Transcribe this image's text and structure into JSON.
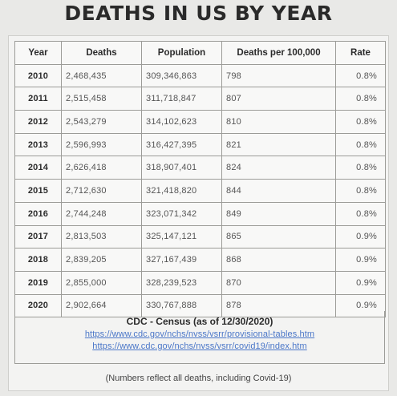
{
  "title": "DEATHS IN US BY YEAR",
  "table": {
    "headers": [
      "Year",
      "Deaths",
      "Population",
      "Deaths per 100,000",
      "Rate"
    ],
    "rows": [
      [
        "2010",
        "2,468,435",
        "309,346,863",
        "798",
        "0.8%"
      ],
      [
        "2011",
        "2,515,458",
        "311,718,847",
        "807",
        "0.8%"
      ],
      [
        "2012",
        "2,543,279",
        "314,102,623",
        "810",
        "0.8%"
      ],
      [
        "2013",
        "2,596,993",
        "316,427,395",
        "821",
        "0.8%"
      ],
      [
        "2014",
        "2,626,418",
        "318,907,401",
        "824",
        "0.8%"
      ],
      [
        "2015",
        "2,712,630",
        "321,418,820",
        "844",
        "0.8%"
      ],
      [
        "2016",
        "2,744,248",
        "323,071,342",
        "849",
        "0.8%"
      ],
      [
        "2017",
        "2,813,503",
        "325,147,121",
        "865",
        "0.9%"
      ],
      [
        "2018",
        "2,839,205",
        "327,167,439",
        "868",
        "0.9%"
      ],
      [
        "2019",
        "2,855,000",
        "328,239,523",
        "870",
        "0.9%"
      ],
      [
        "2020",
        "2,902,664",
        "330,767,888",
        "878",
        "0.9%"
      ]
    ]
  },
  "source": {
    "title": "CDC - Census (as of 12/30/2020)",
    "links": [
      "https://www.cdc.gov/nchs/nvss/vsrr/provisional-tables.htm",
      "https://www.cdc.gov/nchs/nvss/vsrr/covid19/index.htm"
    ]
  },
  "note": "(Numbers reflect all deaths, including Covid-19)"
}
